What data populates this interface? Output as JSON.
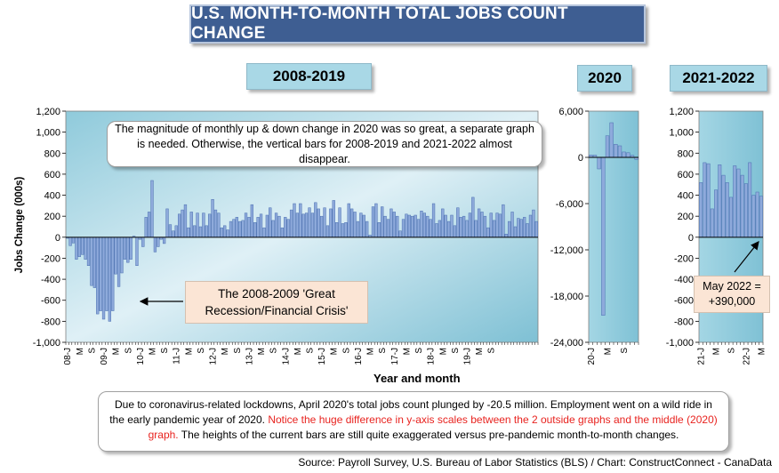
{
  "title": "U.S. MONTH-TO-MONTH TOTAL JOBS COUNT CHANGE",
  "panel_labels": {
    "p1": "2008-2019",
    "p2": "2020",
    "p3": "2021-2022"
  },
  "y_axis_title": "Jobs Change (000s)",
  "x_axis_title": "Year and month",
  "callouts": {
    "main": "The magnitude of monthly up & down change in 2020 was so great, a separate graph is needed. Otherwise, the vertical bars for 2008-2019 and 2021-2022 almost disappear.",
    "recession_line1": "The 2008-2009 'Great",
    "recession_line2": "Recession/Financial Crisis'",
    "may_line1": "May 2022 =",
    "may_line2": "+390,000"
  },
  "note": {
    "part1": "Due to coronavirus-related lockdowns, April 2020's total jobs count plunged by -20.5 million. Employment went on a wild ride in the early pandemic year of 2020. ",
    "part2_red": "Notice the huge difference in y-axis scales between the 2 outside graphs and the middle (2020) graph.",
    "part3": " The heights of the current bars are still quite exaggerated versus pre-pandemic month-to-month changes."
  },
  "source": "Source: Payroll Survey, U.S. Bureau of Labor Statistics (BLS) / Chart: ConstructConnect - CanaData",
  "colors": {
    "bar_fill": "#8eaadb",
    "bar_stroke": "#4a6fb0",
    "plot_bg_top": "#e4f3f8",
    "plot_bg_bottom": "#7ec4d8",
    "note_red": "#e8231f"
  },
  "chart_data": [
    {
      "type": "bar",
      "panel": "2008-2019",
      "ylim": [
        -1000,
        1200
      ],
      "y_ticks": [
        "1,200",
        "1,000",
        "800",
        "600",
        "400",
        "200",
        "0",
        "-200",
        "-400",
        "-600",
        "-800",
        "-1,000"
      ],
      "x_tick_labels": [
        "08-J",
        "M",
        "S",
        "09-J",
        "M",
        "S",
        "10-J",
        "M",
        "S",
        "11-J",
        "M",
        "S",
        "12-J",
        "M",
        "S",
        "13-J",
        "M",
        "S",
        "14-J",
        "M",
        "S",
        "15-J",
        "M",
        "S",
        "16-J",
        "M",
        "S",
        "17-J",
        "M",
        "S",
        "18-J",
        "M",
        "S",
        "19-J",
        "M",
        "S"
      ],
      "start_month": "2008-01",
      "values": [
        -10,
        -80,
        -55,
        -210,
        -185,
        -165,
        -210,
        -270,
        -460,
        -480,
        -730,
        -700,
        -780,
        -700,
        -800,
        -700,
        -350,
        -470,
        -340,
        -210,
        -240,
        -210,
        10,
        -270,
        -20,
        -90,
        190,
        240,
        540,
        -140,
        -90,
        -20,
        -60,
        270,
        120,
        60,
        110,
        220,
        260,
        310,
        90,
        240,
        110,
        230,
        100,
        230,
        110,
        220,
        360,
        260,
        230,
        90,
        110,
        70,
        150,
        170,
        190,
        150,
        160,
        230,
        190,
        310,
        140,
        190,
        220,
        90,
        210,
        280,
        160,
        230,
        200,
        90,
        190,
        170,
        260,
        320,
        230,
        320,
        220,
        230,
        280,
        230,
        330,
        270,
        200,
        280,
        110,
        270,
        350,
        140,
        280,
        130,
        140,
        320,
        270,
        240,
        150,
        230,
        210,
        150,
        20,
        290,
        320,
        140,
        290,
        200,
        170,
        270,
        240,
        200,
        60,
        170,
        220,
        210,
        200,
        210,
        170,
        250,
        230,
        200,
        170,
        320,
        130,
        160,
        270,
        210,
        150,
        210,
        110,
        280,
        190,
        200,
        160,
        230,
        380,
        160,
        270,
        240,
        200,
        90,
        230,
        160,
        230,
        220,
        310,
        30,
        150,
        240,
        100,
        180,
        170,
        190,
        130,
        210,
        260,
        150
      ]
    },
    {
      "type": "bar",
      "panel": "2020",
      "ylim": [
        -24000,
        6000
      ],
      "y_ticks": [
        "6,000",
        "0",
        "-6,000",
        "-12,000",
        "-18,000",
        "-24,000"
      ],
      "x_tick_labels": [
        "20-J",
        "M",
        "S"
      ],
      "start_month": "2020-01",
      "values": [
        310,
        290,
        -1500,
        -20500,
        2800,
        4500,
        1700,
        1500,
        700,
        600,
        260,
        -270
      ]
    },
    {
      "type": "bar",
      "panel": "2021-2022",
      "ylim": [
        -1000,
        1200
      ],
      "y_ticks": [
        "1,200",
        "1,000",
        "800",
        "600",
        "400",
        "200",
        "0",
        "-200",
        "-400",
        "-600",
        "-800",
        "-1,000"
      ],
      "x_tick_labels": [
        "21-J",
        "M",
        "S",
        "22-J",
        "M"
      ],
      "start_month": "2021-01",
      "values": [
        520,
        710,
        700,
        270,
        450,
        690,
        590,
        520,
        380,
        680,
        650,
        590,
        510,
        710,
        400,
        430,
        390
      ]
    }
  ]
}
